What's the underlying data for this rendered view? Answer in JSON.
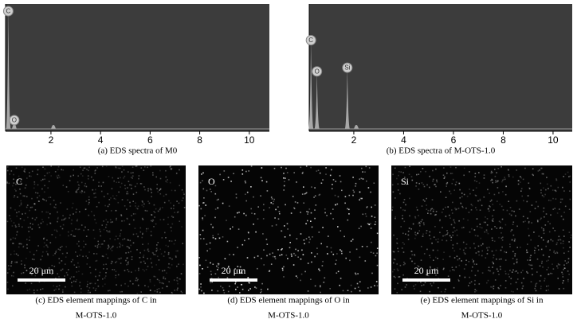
{
  "spectra": [
    {
      "caption": "(a) EDS spectra of M0",
      "xlim": [
        0.17,
        10.81
      ],
      "xticks": [
        2,
        4,
        6,
        8,
        10
      ],
      "peaks": [
        {
          "label": "C",
          "energy": 0.28,
          "intensity": 98
        },
        {
          "label": "O",
          "energy": 0.52,
          "intensity": 7
        },
        {
          "energy": 2.1,
          "intensity": 3
        }
      ]
    },
    {
      "caption": "(b) EDS spectra of M-OTS-1.0",
      "xlim": [
        0.21,
        10.77
      ],
      "xticks": [
        2,
        4,
        6,
        8,
        10
      ],
      "peaks": [
        {
          "label": "C",
          "energy": 0.28,
          "intensity": 71
        },
        {
          "label": "O",
          "energy": 0.52,
          "intensity": 46
        },
        {
          "label": "Si",
          "energy": 1.74,
          "intensity": 49
        },
        {
          "energy": 2.1,
          "intensity": 3
        }
      ]
    }
  ],
  "mappings": [
    {
      "element": "C",
      "scale_bar": "20 μm",
      "caption": [
        "(c) EDS element mappings of C in",
        "M-OTS-1.0"
      ]
    },
    {
      "element": "O",
      "scale_bar": "20 μm",
      "caption": [
        "(d) EDS element mappings of O in",
        "M-OTS-1.0"
      ]
    },
    {
      "element": "Si",
      "scale_bar": "20 μm",
      "caption": [
        "(e) EDS element mappings of Si in",
        "M-OTS-1.0"
      ]
    }
  ]
}
